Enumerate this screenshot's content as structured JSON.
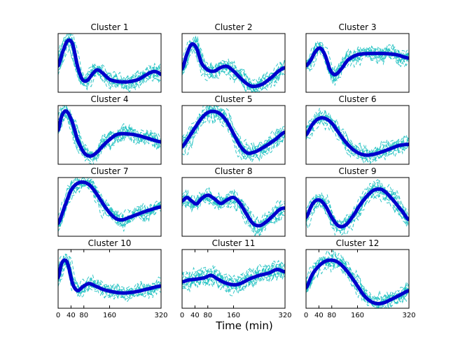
{
  "figure": {
    "xlabel": "Time (min)",
    "colors": {
      "mean": "#0000cc",
      "member": "#1fc1c1",
      "frame": "#000000"
    }
  },
  "chart_data": [
    {
      "type": "line",
      "title": "Cluster 1",
      "xlim": [
        0,
        320
      ],
      "mean": [
        [
          0,
          0.45
        ],
        [
          15,
          0.7
        ],
        [
          30,
          0.88
        ],
        [
          45,
          0.82
        ],
        [
          60,
          0.45
        ],
        [
          75,
          0.22
        ],
        [
          90,
          0.2
        ],
        [
          105,
          0.3
        ],
        [
          120,
          0.38
        ],
        [
          135,
          0.34
        ],
        [
          160,
          0.22
        ],
        [
          190,
          0.18
        ],
        [
          220,
          0.18
        ],
        [
          250,
          0.22
        ],
        [
          275,
          0.3
        ],
        [
          295,
          0.35
        ],
        [
          310,
          0.34
        ],
        [
          320,
          0.3
        ]
      ]
    },
    {
      "type": "line",
      "title": "Cluster 2",
      "xlim": [
        0,
        320
      ],
      "mean": [
        [
          0,
          0.4
        ],
        [
          15,
          0.65
        ],
        [
          30,
          0.82
        ],
        [
          45,
          0.75
        ],
        [
          60,
          0.5
        ],
        [
          80,
          0.38
        ],
        [
          100,
          0.36
        ],
        [
          120,
          0.42
        ],
        [
          140,
          0.44
        ],
        [
          160,
          0.36
        ],
        [
          180,
          0.25
        ],
        [
          200,
          0.15
        ],
        [
          220,
          0.1
        ],
        [
          250,
          0.14
        ],
        [
          280,
          0.26
        ],
        [
          300,
          0.36
        ],
        [
          320,
          0.42
        ]
      ]
    },
    {
      "type": "line",
      "title": "Cluster 3",
      "xlim": [
        0,
        320
      ],
      "mean": [
        [
          0,
          0.45
        ],
        [
          15,
          0.55
        ],
        [
          30,
          0.7
        ],
        [
          45,
          0.75
        ],
        [
          60,
          0.62
        ],
        [
          75,
          0.38
        ],
        [
          90,
          0.3
        ],
        [
          110,
          0.4
        ],
        [
          130,
          0.55
        ],
        [
          160,
          0.64
        ],
        [
          200,
          0.66
        ],
        [
          240,
          0.66
        ],
        [
          280,
          0.64
        ],
        [
          320,
          0.58
        ]
      ]
    },
    {
      "type": "line",
      "title": "Cluster 4",
      "xlim": [
        0,
        320
      ],
      "mean": [
        [
          0,
          0.58
        ],
        [
          10,
          0.8
        ],
        [
          20,
          0.9
        ],
        [
          30,
          0.88
        ],
        [
          45,
          0.7
        ],
        [
          60,
          0.42
        ],
        [
          80,
          0.2
        ],
        [
          100,
          0.14
        ],
        [
          120,
          0.2
        ],
        [
          140,
          0.32
        ],
        [
          160,
          0.42
        ],
        [
          180,
          0.5
        ],
        [
          200,
          0.52
        ],
        [
          240,
          0.5
        ],
        [
          280,
          0.44
        ],
        [
          320,
          0.38
        ]
      ]
    },
    {
      "type": "line",
      "title": "Cluster 5",
      "xlim": [
        0,
        320
      ],
      "mean": [
        [
          0,
          0.3
        ],
        [
          20,
          0.45
        ],
        [
          40,
          0.62
        ],
        [
          60,
          0.78
        ],
        [
          80,
          0.88
        ],
        [
          100,
          0.9
        ],
        [
          120,
          0.85
        ],
        [
          140,
          0.72
        ],
        [
          160,
          0.52
        ],
        [
          180,
          0.32
        ],
        [
          200,
          0.2
        ],
        [
          220,
          0.2
        ],
        [
          250,
          0.28
        ],
        [
          290,
          0.42
        ],
        [
          320,
          0.55
        ]
      ]
    },
    {
      "type": "line",
      "title": "Cluster 6",
      "xlim": [
        0,
        320
      ],
      "mean": [
        [
          0,
          0.5
        ],
        [
          20,
          0.68
        ],
        [
          40,
          0.78
        ],
        [
          60,
          0.78
        ],
        [
          80,
          0.7
        ],
        [
          100,
          0.55
        ],
        [
          120,
          0.4
        ],
        [
          140,
          0.28
        ],
        [
          160,
          0.2
        ],
        [
          180,
          0.16
        ],
        [
          200,
          0.16
        ],
        [
          230,
          0.2
        ],
        [
          260,
          0.26
        ],
        [
          290,
          0.32
        ],
        [
          320,
          0.34
        ]
      ]
    },
    {
      "type": "line",
      "title": "Cluster 7",
      "xlim": [
        0,
        320
      ],
      "mean": [
        [
          0,
          0.22
        ],
        [
          20,
          0.5
        ],
        [
          40,
          0.78
        ],
        [
          60,
          0.9
        ],
        [
          80,
          0.92
        ],
        [
          100,
          0.86
        ],
        [
          120,
          0.72
        ],
        [
          140,
          0.55
        ],
        [
          160,
          0.4
        ],
        [
          180,
          0.3
        ],
        [
          200,
          0.28
        ],
        [
          220,
          0.32
        ],
        [
          250,
          0.38
        ],
        [
          280,
          0.44
        ],
        [
          320,
          0.5
        ]
      ]
    },
    {
      "type": "line",
      "title": "Cluster 8",
      "xlim": [
        0,
        320
      ],
      "mean": [
        [
          0,
          0.6
        ],
        [
          15,
          0.66
        ],
        [
          30,
          0.6
        ],
        [
          45,
          0.55
        ],
        [
          60,
          0.64
        ],
        [
          80,
          0.7
        ],
        [
          100,
          0.64
        ],
        [
          120,
          0.56
        ],
        [
          140,
          0.62
        ],
        [
          160,
          0.66
        ],
        [
          180,
          0.56
        ],
        [
          200,
          0.38
        ],
        [
          220,
          0.22
        ],
        [
          240,
          0.18
        ],
        [
          260,
          0.24
        ],
        [
          285,
          0.36
        ],
        [
          305,
          0.46
        ],
        [
          320,
          0.48
        ]
      ]
    },
    {
      "type": "line",
      "title": "Cluster 9",
      "xlim": [
        0,
        320
      ],
      "mean": [
        [
          0,
          0.32
        ],
        [
          20,
          0.55
        ],
        [
          40,
          0.62
        ],
        [
          60,
          0.52
        ],
        [
          80,
          0.32
        ],
        [
          100,
          0.18
        ],
        [
          120,
          0.18
        ],
        [
          140,
          0.3
        ],
        [
          170,
          0.55
        ],
        [
          200,
          0.74
        ],
        [
          220,
          0.8
        ],
        [
          240,
          0.78
        ],
        [
          270,
          0.62
        ],
        [
          300,
          0.42
        ],
        [
          320,
          0.28
        ]
      ]
    },
    {
      "type": "line",
      "title": "Cluster 10",
      "xlim": [
        0,
        320
      ],
      "mean": [
        [
          0,
          0.52
        ],
        [
          10,
          0.75
        ],
        [
          20,
          0.82
        ],
        [
          30,
          0.75
        ],
        [
          45,
          0.42
        ],
        [
          60,
          0.3
        ],
        [
          75,
          0.36
        ],
        [
          95,
          0.42
        ],
        [
          115,
          0.38
        ],
        [
          140,
          0.32
        ],
        [
          170,
          0.28
        ],
        [
          200,
          0.26
        ],
        [
          240,
          0.28
        ],
        [
          280,
          0.33
        ],
        [
          320,
          0.38
        ]
      ]
    },
    {
      "type": "line",
      "title": "Cluster 11",
      "xlim": [
        0,
        320
      ],
      "mean": [
        [
          0,
          0.45
        ],
        [
          20,
          0.48
        ],
        [
          50,
          0.5
        ],
        [
          70,
          0.52
        ],
        [
          90,
          0.56
        ],
        [
          110,
          0.5
        ],
        [
          130,
          0.44
        ],
        [
          160,
          0.4
        ],
        [
          180,
          0.42
        ],
        [
          210,
          0.5
        ],
        [
          240,
          0.56
        ],
        [
          270,
          0.6
        ],
        [
          295,
          0.66
        ],
        [
          320,
          0.62
        ]
      ]
    },
    {
      "type": "line",
      "title": "Cluster 12",
      "xlim": [
        0,
        320
      ],
      "mean": [
        [
          0,
          0.35
        ],
        [
          20,
          0.58
        ],
        [
          40,
          0.72
        ],
        [
          60,
          0.8
        ],
        [
          80,
          0.82
        ],
        [
          100,
          0.78
        ],
        [
          120,
          0.68
        ],
        [
          140,
          0.54
        ],
        [
          160,
          0.38
        ],
        [
          180,
          0.22
        ],
        [
          200,
          0.12
        ],
        [
          220,
          0.08
        ],
        [
          240,
          0.09
        ],
        [
          260,
          0.14
        ],
        [
          290,
          0.22
        ],
        [
          320,
          0.3
        ]
      ]
    }
  ],
  "xaxis": {
    "ticks": [
      0,
      40,
      80,
      160,
      320
    ],
    "tick_labels": [
      "0",
      "40",
      "80",
      "160",
      "320"
    ]
  }
}
